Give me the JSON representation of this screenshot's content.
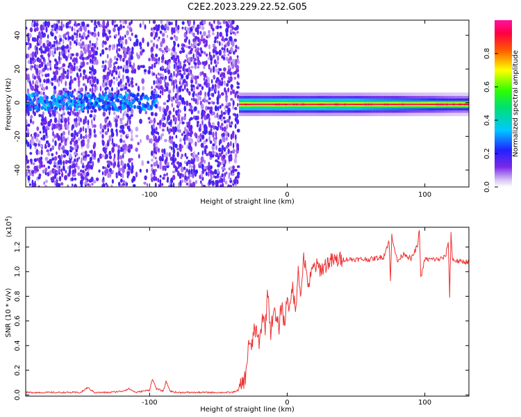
{
  "title": "C2E2.2023.229.22.52.G05",
  "colors": {
    "snr_line": "#ee3030",
    "frame": "#000000",
    "background": "#ffffff"
  },
  "chart_data": [
    {
      "type": "heatmap",
      "title": "C2E2.2023.229.22.52.G05",
      "xlabel": "Height of straight line (km)",
      "ylabel": "Frequency (Hz)",
      "xlim": [
        -190,
        132
      ],
      "ylim": [
        -50,
        49
      ],
      "x_ticks": [
        -100,
        0,
        100
      ],
      "x_tick_labels": [
        "-100",
        "0",
        "100"
      ],
      "y_ticks": [
        -40,
        -20,
        0,
        20,
        40
      ],
      "y_tick_labels": [
        "-40",
        "-20",
        "0",
        "20",
        "40"
      ],
      "colorbar": {
        "label": "Normalized spectral amplitude",
        "range": [
          0,
          1
        ],
        "colormap": "rainbow (white → violet → blue → cyan → green → yellow → red → magenta)",
        "ticks": [
          0,
          0.2,
          0.4,
          0.6,
          0.8
        ],
        "tick_labels": [
          "0.0",
          "0.2",
          "0.4",
          "0.6",
          "0.8"
        ]
      },
      "regions": [
        {
          "x_range": [
            -190,
            -35
          ],
          "y_range": [
            -50,
            49
          ],
          "amplitude": [
            0.05,
            0.2
          ],
          "description": "broadband noise"
        },
        {
          "x_range": [
            -190,
            -95
          ],
          "y_range": [
            -4,
            5
          ],
          "amplitude": [
            0.2,
            0.35
          ],
          "description": "weak band near 0 Hz"
        },
        {
          "x_range": [
            -35,
            132
          ],
          "y_range": [
            -3,
            1
          ],
          "amplitude": [
            0.4,
            0.95
          ],
          "description": "narrow band near -1 Hz"
        }
      ],
      "grid": false,
      "legend": "colorbar right"
    },
    {
      "type": "line",
      "xlabel": "Height of straight line (km)",
      "ylabel": "SNR (10 * v/v)",
      "y_multiplier_label": "(x10",
      "y_multiplier_exp": "4",
      "y_multiplier_close": ")",
      "xlim": [
        -190,
        132
      ],
      "ylim": [
        -0.01,
        1.36
      ],
      "x_ticks": [
        -100,
        0,
        100
      ],
      "x_tick_labels": [
        "-100",
        "0",
        "100"
      ],
      "y_ticks": [
        0,
        0.2,
        0.4,
        0.6,
        0.8,
        1.0,
        1.2
      ],
      "y_tick_labels": [
        "0.0",
        "0.2",
        "0.4",
        "0.6",
        "0.8",
        "1.0",
        "1.2"
      ],
      "series": [
        {
          "x": [
            -190,
            -170,
            -150,
            -145,
            -140,
            -130,
            -120,
            -115,
            -110,
            -100,
            -98,
            -95,
            -90,
            -88,
            -85,
            -80,
            -60,
            -40,
            -35,
            -30,
            -28,
            -26,
            -24,
            -22,
            -20,
            -18,
            -16,
            -14,
            -12,
            -10,
            -8,
            -6,
            -4,
            -2,
            0,
            2,
            4,
            6,
            8,
            10,
            12,
            14,
            16,
            18,
            20,
            25,
            30,
            35,
            40,
            50,
            60,
            70,
            74,
            75,
            76,
            80,
            85,
            90,
            95,
            96,
            97,
            100,
            110,
            115,
            117,
            118,
            119,
            120,
            125,
            132
          ],
          "y": [
            0.02,
            0.02,
            0.02,
            0.06,
            0.02,
            0.02,
            0.03,
            0.05,
            0.02,
            0.04,
            0.13,
            0.05,
            0.03,
            0.11,
            0.03,
            0.02,
            0.02,
            0.02,
            0.04,
            0.15,
            0.45,
            0.35,
            0.55,
            0.48,
            0.42,
            0.65,
            0.55,
            0.85,
            0.5,
            0.7,
            0.6,
            0.55,
            0.75,
            0.55,
            0.82,
            0.68,
            0.9,
            0.65,
            1.05,
            0.78,
            1.15,
            0.95,
            0.9,
            1.0,
            1.05,
            1.02,
            1.08,
            1.09,
            1.1,
            1.1,
            1.1,
            1.12,
            1.25,
            0.92,
            1.3,
            1.08,
            1.15,
            1.1,
            1.22,
            1.35,
            0.95,
            1.1,
            1.1,
            1.12,
            1.25,
            0.8,
            1.32,
            1.1,
            1.08,
            1.08
          ]
        }
      ],
      "grid": false
    }
  ]
}
